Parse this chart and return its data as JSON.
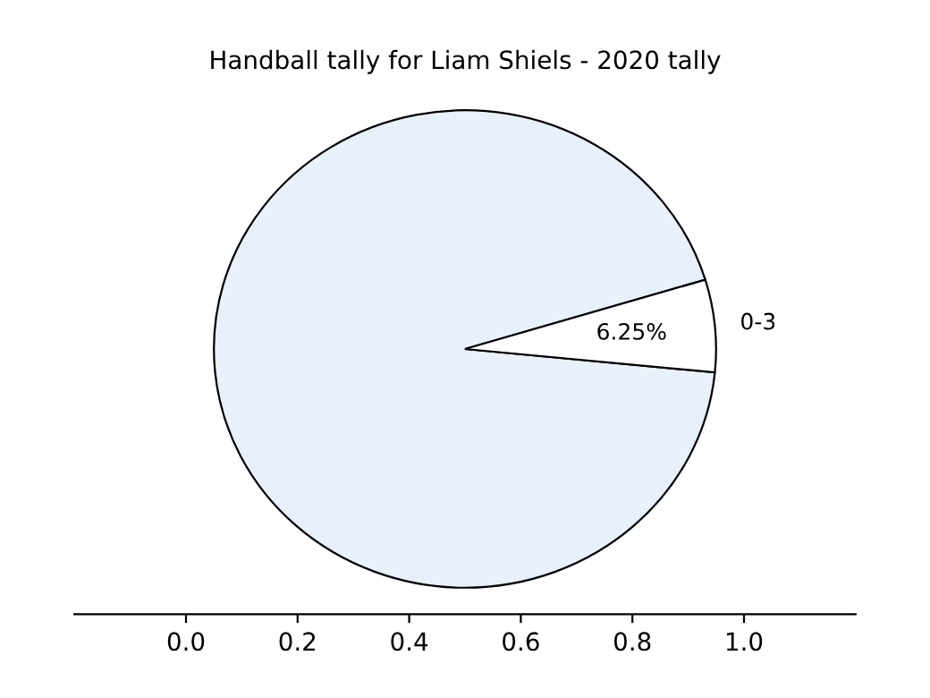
{
  "chart_data": {
    "type": "pie",
    "title": "Handball tally for Liam Shiels - 2020 tally",
    "categories": [
      null,
      "0-3"
    ],
    "values": [
      93.75,
      6.25
    ],
    "colors": [
      "#e8f0fc",
      "#ffffff"
    ],
    "value_labels": [
      null,
      "6.25%"
    ],
    "annotations": [
      "0.0",
      "0.2",
      "0.4",
      "0.6",
      "0.8",
      "1.0"
    ]
  }
}
